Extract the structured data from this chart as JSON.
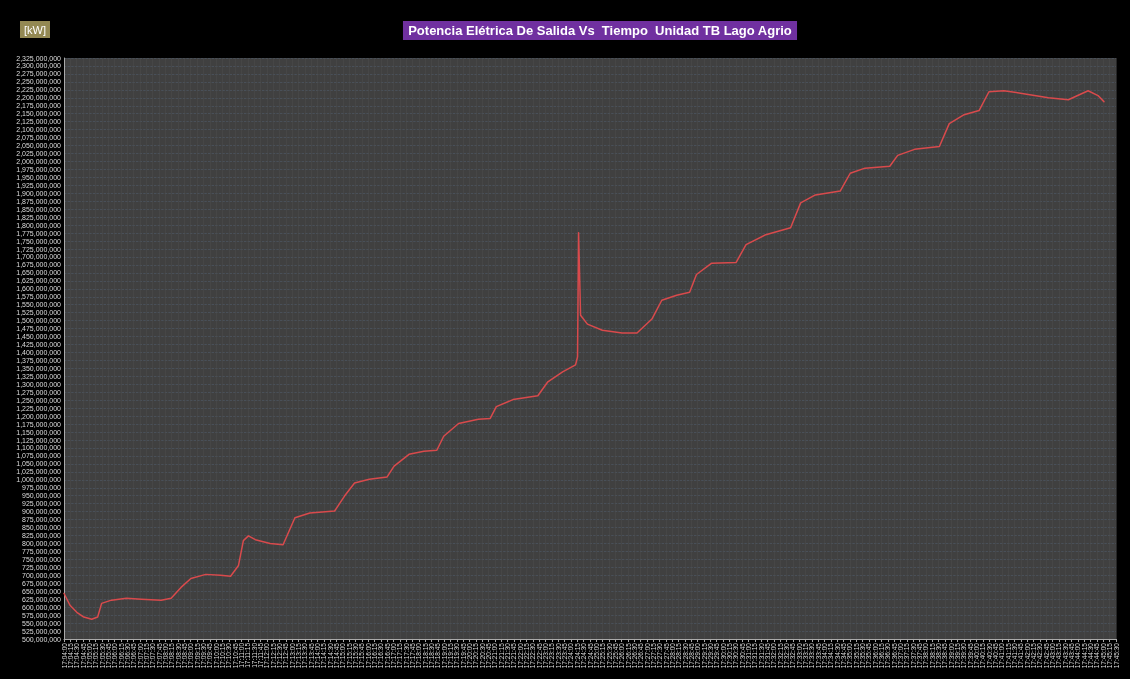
{
  "chart_data": {
    "type": "line",
    "title": "Potencia Elétrica De Salida Vs  Tiempo  Unidad TB Lago Agrio",
    "ylabel": "[kW]",
    "grid": true,
    "marker": "none",
    "line_style": "solid",
    "ylim": [
      500000000,
      2325000000
    ],
    "yticks": [
      {
        "value": 500000000,
        "label": "500,000,000"
      },
      {
        "value": 525000000,
        "label": "525,000,000"
      },
      {
        "value": 550000000,
        "label": "550,000,000"
      },
      {
        "value": 575000000,
        "label": "575,000,000"
      },
      {
        "value": 600000000,
        "label": "600,000,000"
      },
      {
        "value": 625000000,
        "label": "625,000,000"
      },
      {
        "value": 650000000,
        "label": "650,000,000"
      },
      {
        "value": 675000000,
        "label": "675,000,000"
      },
      {
        "value": 700000000,
        "label": "700,000,000"
      },
      {
        "value": 725000000,
        "label": "725,000,000"
      },
      {
        "value": 750000000,
        "label": "750,000,000"
      },
      {
        "value": 775000000,
        "label": "775,000,000"
      },
      {
        "value": 800000000,
        "label": "800,000,000"
      },
      {
        "value": 825000000,
        "label": "825,000,000"
      },
      {
        "value": 850000000,
        "label": "850,000,000"
      },
      {
        "value": 875000000,
        "label": "875,000,000"
      },
      {
        "value": 900000000,
        "label": "900,000,000"
      },
      {
        "value": 925000000,
        "label": "925,000,000"
      },
      {
        "value": 950000000,
        "label": "950,000,000"
      },
      {
        "value": 975000000,
        "label": "975,000,000"
      },
      {
        "value": 1000000000,
        "label": "1,000,000,000"
      },
      {
        "value": 1025000000,
        "label": "1,025,000,000"
      },
      {
        "value": 1050000000,
        "label": "1,050,000,000"
      },
      {
        "value": 1075000000,
        "label": "1,075,000,000"
      },
      {
        "value": 1100000000,
        "label": "1,100,000,000"
      },
      {
        "value": 1125000000,
        "label": "1,125,000,000"
      },
      {
        "value": 1150000000,
        "label": "1,150,000,000"
      },
      {
        "value": 1175000000,
        "label": "1,175,000,000"
      },
      {
        "value": 1200000000,
        "label": "1,200,000,000"
      },
      {
        "value": 1225000000,
        "label": "1,225,000,000"
      },
      {
        "value": 1250000000,
        "label": "1,250,000,000"
      },
      {
        "value": 1275000000,
        "label": "1,275,000,000"
      },
      {
        "value": 1300000000,
        "label": "1,300,000,000"
      },
      {
        "value": 1325000000,
        "label": "1,325,000,000"
      },
      {
        "value": 1350000000,
        "label": "1,350,000,000"
      },
      {
        "value": 1375000000,
        "label": "1,375,000,000"
      },
      {
        "value": 1400000000,
        "label": "1,400,000,000"
      },
      {
        "value": 1425000000,
        "label": "1,425,000,000"
      },
      {
        "value": 1450000000,
        "label": "1,450,000,000"
      },
      {
        "value": 1475000000,
        "label": "1,475,000,000"
      },
      {
        "value": 1500000000,
        "label": "1,500,000,000"
      },
      {
        "value": 1525000000,
        "label": "1,525,000,000"
      },
      {
        "value": 1550000000,
        "label": "1,550,000,000"
      },
      {
        "value": 1575000000,
        "label": "1,575,000,000"
      },
      {
        "value": 1600000000,
        "label": "1,600,000,000"
      },
      {
        "value": 1625000000,
        "label": "1,625,000,000"
      },
      {
        "value": 1650000000,
        "label": "1,650,000,000"
      },
      {
        "value": 1675000000,
        "label": "1,675,000,000"
      },
      {
        "value": 1700000000,
        "label": "1,700,000,000"
      },
      {
        "value": 1725000000,
        "label": "1,725,000,000"
      },
      {
        "value": 1750000000,
        "label": "1,750,000,000"
      },
      {
        "value": 1775000000,
        "label": "1,775,000,000"
      },
      {
        "value": 1800000000,
        "label": "1,800,000,000"
      },
      {
        "value": 1825000000,
        "label": "1,825,000,000"
      },
      {
        "value": 1850000000,
        "label": "1,850,000,000"
      },
      {
        "value": 1875000000,
        "label": "1,875,000,000"
      },
      {
        "value": 1900000000,
        "label": "1,900,000,000"
      },
      {
        "value": 1925000000,
        "label": "1,925,000,000"
      },
      {
        "value": 1950000000,
        "label": "1,950,000,000"
      },
      {
        "value": 1975000000,
        "label": "1,975,000,000"
      },
      {
        "value": 2000000000,
        "label": "2,000,000,000"
      },
      {
        "value": 2025000000,
        "label": "2,025,000,000"
      },
      {
        "value": 2050000000,
        "label": "2,050,000,000"
      },
      {
        "value": 2075000000,
        "label": "2,075,000,000"
      },
      {
        "value": 2100000000,
        "label": "2,100,000,000"
      },
      {
        "value": 2125000000,
        "label": "2,125,000,000"
      },
      {
        "value": 2150000000,
        "label": "2,150,000,000"
      },
      {
        "value": 2175000000,
        "label": "2,175,000,000"
      },
      {
        "value": 2200000000,
        "label": "2,200,000,000"
      },
      {
        "value": 2225000000,
        "label": "2,225,000,000"
      },
      {
        "value": 2250000000,
        "label": "2,250,000,000"
      },
      {
        "value": 2275000000,
        "label": "2,275,000,000"
      },
      {
        "value": 2300000000,
        "label": "2,300,000,000"
      },
      {
        "value": 2325000000,
        "label": "2,325,000,000"
      }
    ],
    "xlim": [
      17.06667,
      17.75833
    ],
    "xticks": [
      {
        "value": 17.06667,
        "label": "17:04:00"
      },
      {
        "value": 17.07083,
        "label": "17:04:15"
      },
      {
        "value": 17.075,
        "label": "17:04:30"
      },
      {
        "value": 17.07917,
        "label": "17:04:45"
      },
      {
        "value": 17.08333,
        "label": "17:05:00"
      },
      {
        "value": 17.0875,
        "label": "17:05:15"
      },
      {
        "value": 17.09167,
        "label": "17:05:30"
      },
      {
        "value": 17.09583,
        "label": "17:05:45"
      },
      {
        "value": 17.1,
        "label": "17:06:00"
      },
      {
        "value": 17.10417,
        "label": "17:06:15"
      },
      {
        "value": 17.10833,
        "label": "17:06:30"
      },
      {
        "value": 17.1125,
        "label": "17:06:45"
      },
      {
        "value": 17.11667,
        "label": "17:07:00"
      },
      {
        "value": 17.12083,
        "label": "17:07:15"
      },
      {
        "value": 17.125,
        "label": "17:07:30"
      },
      {
        "value": 17.12917,
        "label": "17:07:45"
      },
      {
        "value": 17.13333,
        "label": "17:08:00"
      },
      {
        "value": 17.1375,
        "label": "17:08:15"
      },
      {
        "value": 17.14167,
        "label": "17:08:30"
      },
      {
        "value": 17.14583,
        "label": "17:08:45"
      },
      {
        "value": 17.15,
        "label": "17:09:00"
      },
      {
        "value": 17.15417,
        "label": "17:09:15"
      },
      {
        "value": 17.15833,
        "label": "17:09:30"
      },
      {
        "value": 17.1625,
        "label": "17:09:45"
      },
      {
        "value": 17.16667,
        "label": "17:10:00"
      },
      {
        "value": 17.17083,
        "label": "17:10:15"
      },
      {
        "value": 17.175,
        "label": "17:10:30"
      },
      {
        "value": 17.17917,
        "label": "17:10:45"
      },
      {
        "value": 17.18333,
        "label": "17:11:00"
      },
      {
        "value": 17.1875,
        "label": "17:11:15"
      },
      {
        "value": 17.19167,
        "label": "17:11:30"
      },
      {
        "value": 17.19583,
        "label": "17:11:45"
      },
      {
        "value": 17.2,
        "label": "17:12:00"
      },
      {
        "value": 17.20417,
        "label": "17:12:15"
      },
      {
        "value": 17.20833,
        "label": "17:12:30"
      },
      {
        "value": 17.2125,
        "label": "17:12:45"
      },
      {
        "value": 17.21667,
        "label": "17:13:00"
      },
      {
        "value": 17.22083,
        "label": "17:13:15"
      },
      {
        "value": 17.225,
        "label": "17:13:30"
      },
      {
        "value": 17.22917,
        "label": "17:13:45"
      },
      {
        "value": 17.23333,
        "label": "17:14:00"
      },
      {
        "value": 17.2375,
        "label": "17:14:15"
      },
      {
        "value": 17.24167,
        "label": "17:14:30"
      },
      {
        "value": 17.24583,
        "label": "17:14:45"
      },
      {
        "value": 17.25,
        "label": "17:15:00"
      },
      {
        "value": 17.25417,
        "label": "17:15:15"
      },
      {
        "value": 17.25833,
        "label": "17:15:30"
      },
      {
        "value": 17.2625,
        "label": "17:15:45"
      },
      {
        "value": 17.26667,
        "label": "17:16:00"
      },
      {
        "value": 17.27083,
        "label": "17:16:15"
      },
      {
        "value": 17.275,
        "label": "17:16:30"
      },
      {
        "value": 17.27917,
        "label": "17:16:45"
      },
      {
        "value": 17.28333,
        "label": "17:17:00"
      },
      {
        "value": 17.2875,
        "label": "17:17:15"
      },
      {
        "value": 17.29167,
        "label": "17:17:30"
      },
      {
        "value": 17.29583,
        "label": "17:17:45"
      },
      {
        "value": 17.3,
        "label": "17:18:00"
      },
      {
        "value": 17.30417,
        "label": "17:18:15"
      },
      {
        "value": 17.30833,
        "label": "17:18:30"
      },
      {
        "value": 17.3125,
        "label": "17:18:45"
      },
      {
        "value": 17.31667,
        "label": "17:19:00"
      },
      {
        "value": 17.32083,
        "label": "17:19:15"
      },
      {
        "value": 17.325,
        "label": "17:19:30"
      },
      {
        "value": 17.32917,
        "label": "17:19:45"
      },
      {
        "value": 17.33333,
        "label": "17:20:00"
      },
      {
        "value": 17.3375,
        "label": "17:20:15"
      },
      {
        "value": 17.34167,
        "label": "17:20:30"
      },
      {
        "value": 17.34583,
        "label": "17:20:45"
      },
      {
        "value": 17.35,
        "label": "17:21:00"
      },
      {
        "value": 17.35417,
        "label": "17:21:15"
      },
      {
        "value": 17.35833,
        "label": "17:21:30"
      },
      {
        "value": 17.3625,
        "label": "17:21:45"
      },
      {
        "value": 17.36667,
        "label": "17:22:00"
      },
      {
        "value": 17.37083,
        "label": "17:22:15"
      },
      {
        "value": 17.375,
        "label": "17:22:30"
      },
      {
        "value": 17.37917,
        "label": "17:22:45"
      },
      {
        "value": 17.38333,
        "label": "17:23:00"
      },
      {
        "value": 17.3875,
        "label": "17:23:15"
      },
      {
        "value": 17.39167,
        "label": "17:23:30"
      },
      {
        "value": 17.39583,
        "label": "17:23:45"
      },
      {
        "value": 17.4,
        "label": "17:24:00"
      },
      {
        "value": 17.40417,
        "label": "17:24:15"
      },
      {
        "value": 17.40833,
        "label": "17:24:30"
      },
      {
        "value": 17.4125,
        "label": "17:24:45"
      },
      {
        "value": 17.41667,
        "label": "17:25:00"
      },
      {
        "value": 17.42083,
        "label": "17:25:15"
      },
      {
        "value": 17.425,
        "label": "17:25:30"
      },
      {
        "value": 17.42917,
        "label": "17:25:45"
      },
      {
        "value": 17.43333,
        "label": "17:26:00"
      },
      {
        "value": 17.4375,
        "label": "17:26:15"
      },
      {
        "value": 17.44167,
        "label": "17:26:30"
      },
      {
        "value": 17.44583,
        "label": "17:26:45"
      },
      {
        "value": 17.45,
        "label": "17:27:00"
      },
      {
        "value": 17.45417,
        "label": "17:27:15"
      },
      {
        "value": 17.45833,
        "label": "17:27:30"
      },
      {
        "value": 17.4625,
        "label": "17:27:45"
      },
      {
        "value": 17.46667,
        "label": "17:28:00"
      },
      {
        "value": 17.47083,
        "label": "17:28:15"
      },
      {
        "value": 17.475,
        "label": "17:28:30"
      },
      {
        "value": 17.47917,
        "label": "17:28:45"
      },
      {
        "value": 17.48333,
        "label": "17:29:00"
      },
      {
        "value": 17.4875,
        "label": "17:29:15"
      },
      {
        "value": 17.49167,
        "label": "17:29:30"
      },
      {
        "value": 17.49583,
        "label": "17:29:45"
      },
      {
        "value": 17.5,
        "label": "17:30:00"
      },
      {
        "value": 17.50417,
        "label": "17:30:15"
      },
      {
        "value": 17.50833,
        "label": "17:30:30"
      },
      {
        "value": 17.5125,
        "label": "17:30:45"
      },
      {
        "value": 17.51667,
        "label": "17:31:00"
      },
      {
        "value": 17.52083,
        "label": "17:31:15"
      },
      {
        "value": 17.525,
        "label": "17:31:30"
      },
      {
        "value": 17.52917,
        "label": "17:31:45"
      },
      {
        "value": 17.53333,
        "label": "17:32:00"
      },
      {
        "value": 17.5375,
        "label": "17:32:15"
      },
      {
        "value": 17.54167,
        "label": "17:32:30"
      },
      {
        "value": 17.54583,
        "label": "17:32:45"
      },
      {
        "value": 17.55,
        "label": "17:33:00"
      },
      {
        "value": 17.55417,
        "label": "17:33:15"
      },
      {
        "value": 17.55833,
        "label": "17:33:30"
      },
      {
        "value": 17.5625,
        "label": "17:33:45"
      },
      {
        "value": 17.56667,
        "label": "17:34:00"
      },
      {
        "value": 17.57083,
        "label": "17:34:15"
      },
      {
        "value": 17.575,
        "label": "17:34:30"
      },
      {
        "value": 17.57917,
        "label": "17:34:45"
      },
      {
        "value": 17.58333,
        "label": "17:35:00"
      },
      {
        "value": 17.5875,
        "label": "17:35:15"
      },
      {
        "value": 17.59167,
        "label": "17:35:30"
      },
      {
        "value": 17.59583,
        "label": "17:35:45"
      },
      {
        "value": 17.6,
        "label": "17:36:00"
      },
      {
        "value": 17.60417,
        "label": "17:36:15"
      },
      {
        "value": 17.60833,
        "label": "17:36:30"
      },
      {
        "value": 17.6125,
        "label": "17:36:45"
      },
      {
        "value": 17.61667,
        "label": "17:37:00"
      },
      {
        "value": 17.62083,
        "label": "17:37:15"
      },
      {
        "value": 17.625,
        "label": "17:37:30"
      },
      {
        "value": 17.62917,
        "label": "17:37:45"
      },
      {
        "value": 17.63333,
        "label": "17:38:00"
      },
      {
        "value": 17.6375,
        "label": "17:38:15"
      },
      {
        "value": 17.64167,
        "label": "17:38:30"
      },
      {
        "value": 17.64583,
        "label": "17:38:45"
      },
      {
        "value": 17.65,
        "label": "17:39:00"
      },
      {
        "value": 17.65417,
        "label": "17:39:15"
      },
      {
        "value": 17.65833,
        "label": "17:39:30"
      },
      {
        "value": 17.6625,
        "label": "17:39:45"
      },
      {
        "value": 17.66667,
        "label": "17:40:00"
      },
      {
        "value": 17.67083,
        "label": "17:40:15"
      },
      {
        "value": 17.675,
        "label": "17:40:30"
      },
      {
        "value": 17.67917,
        "label": "17:40:45"
      },
      {
        "value": 17.68333,
        "label": "17:41:00"
      },
      {
        "value": 17.6875,
        "label": "17:41:15"
      },
      {
        "value": 17.69167,
        "label": "17:41:30"
      },
      {
        "value": 17.69583,
        "label": "17:41:45"
      },
      {
        "value": 17.7,
        "label": "17:42:00"
      },
      {
        "value": 17.70417,
        "label": "17:42:15"
      },
      {
        "value": 17.70833,
        "label": "17:42:30"
      },
      {
        "value": 17.7125,
        "label": "17:42:45"
      },
      {
        "value": 17.71667,
        "label": "17:43:00"
      },
      {
        "value": 17.72083,
        "label": "17:43:15"
      },
      {
        "value": 17.725,
        "label": "17:43:30"
      },
      {
        "value": 17.72917,
        "label": "17:43:45"
      },
      {
        "value": 17.73333,
        "label": "17:44:00"
      },
      {
        "value": 17.7375,
        "label": "17:44:15"
      },
      {
        "value": 17.74167,
        "label": "17:44:30"
      },
      {
        "value": 17.74583,
        "label": "17:44:45"
      },
      {
        "value": 17.75,
        "label": "17:45:00"
      },
      {
        "value": 17.75417,
        "label": "17:45:15"
      },
      {
        "value": 17.75833,
        "label": "17:45:30"
      }
    ],
    "series": [
      {
        "color": "#d94a4c",
        "x": [
          17.0667,
          17.0706,
          17.0751,
          17.0797,
          17.0849,
          17.0888,
          17.0914,
          17.0979,
          17.1077,
          17.1175,
          17.1306,
          17.1371,
          17.1436,
          17.1501,
          17.1599,
          17.1696,
          17.1762,
          17.1814,
          17.1846,
          17.1879,
          17.1925,
          17.2022,
          17.2107,
          17.2185,
          17.2283,
          17.2446,
          17.2511,
          17.2577,
          17.2674,
          17.2791,
          17.2837,
          17.2935,
          17.3033,
          17.3118,
          17.3163,
          17.3261,
          17.3391,
          17.3469,
          17.3509,
          17.3619,
          17.3782,
          17.3848,
          17.3945,
          17.403,
          17.4043,
          17.405,
          17.4063,
          17.4108,
          17.4206,
          17.4336,
          17.4434,
          17.4532,
          17.4597,
          17.4695,
          17.478,
          17.4825,
          17.4923,
          17.5086,
          17.5151,
          17.5281,
          17.5444,
          17.551,
          17.5607,
          17.577,
          17.5836,
          17.5933,
          17.6096,
          17.6148,
          17.6259,
          17.6422,
          17.6487,
          17.6585,
          17.6683,
          17.6748,
          17.6846,
          17.6976,
          17.7139,
          17.727,
          17.74,
          17.7465,
          17.7504
        ],
        "values": [
          643000000,
          606000000,
          584000000,
          569000000,
          562000000,
          569000000,
          612000000,
          622000000,
          628000000,
          625000000,
          622000000,
          628000000,
          662000000,
          690000000,
          703000000,
          700000000,
          697000000,
          731000000,
          809000000,
          824000000,
          812000000,
          800000000,
          796000000,
          881000000,
          896000000,
          902000000,
          949000000,
          990000000,
          1002000000,
          1009000000,
          1043000000,
          1080000000,
          1090000000,
          1093000000,
          1137000000,
          1177000000,
          1190000000,
          1193000000,
          1230000000,
          1252000000,
          1264000000,
          1308000000,
          1339000000,
          1361000000,
          1386000000,
          1776000000,
          1517000000,
          1489000000,
          1470000000,
          1461000000,
          1461000000,
          1505000000,
          1564000000,
          1580000000,
          1589000000,
          1645000000,
          1680000000,
          1683000000,
          1739000000,
          1770000000,
          1792000000,
          1870000000,
          1895000000,
          1907000000,
          1963000000,
          1979000000,
          1985000000,
          2019000000,
          2038000000,
          2047000000,
          2119000000,
          2147000000,
          2160000000,
          2219000000,
          2222000000,
          2213000000,
          2200000000,
          2194000000,
          2222000000,
          2207000000,
          2188000000
        ]
      }
    ]
  }
}
